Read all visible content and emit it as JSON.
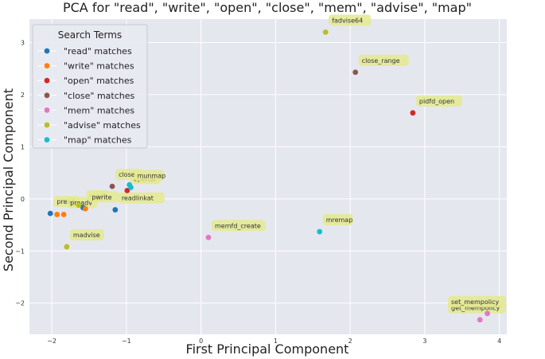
{
  "chart_data": {
    "type": "scatter",
    "title": "PCA for \"read\", \"write\", \"open\", \"close\", \"mem\", \"advise\", \"map\"",
    "xlabel": "First Principal Component",
    "ylabel": "Second Principal Component",
    "xlim": [
      -2.3,
      4.1
    ],
    "ylim": [
      -2.6,
      3.45
    ],
    "xticks": [
      -2,
      -1,
      0,
      1,
      2,
      3,
      4
    ],
    "yticks": [
      -2,
      -1,
      0,
      1,
      2,
      3
    ],
    "xtick_labels": [
      "−2",
      "−1",
      "0",
      "1",
      "2",
      "3",
      "4"
    ],
    "ytick_labels": [
      "−2",
      "−1",
      "0",
      "1",
      "2",
      "3"
    ],
    "grid": true,
    "background": "#e5e7ef",
    "legend": {
      "title": "Search Terms",
      "placement": "top-left",
      "entries": [
        {
          "label": "\"read\" matches",
          "color": "#1f77b4"
        },
        {
          "label": "\"write\" matches",
          "color": "#ff7f0e"
        },
        {
          "label": "\"open\" matches",
          "color": "#d62728"
        },
        {
          "label": "\"close\" matches",
          "color": "#8c564b"
        },
        {
          "label": "\"mem\" matches",
          "color": "#e377c2"
        },
        {
          "label": "\"advise\" matches",
          "color": "#bcbd22"
        },
        {
          "label": "\"map\" matches",
          "color": "#17becf"
        }
      ]
    },
    "series": [
      {
        "name": "\"read\" matches",
        "color": "#1f77b4",
        "points": [
          {
            "x": -2.02,
            "y": -0.28,
            "label": "pread"
          },
          {
            "x": -1.15,
            "y": -0.21,
            "label": "readlinkat"
          },
          {
            "x": -1.58,
            "y": -0.17,
            "label": "read"
          }
        ]
      },
      {
        "name": "\"write\" matches",
        "color": "#ff7f0e",
        "points": [
          {
            "x": -1.93,
            "y": -0.3,
            "label": ""
          },
          {
            "x": -1.84,
            "y": -0.3,
            "label": "preadv"
          },
          {
            "x": -1.55,
            "y": -0.19,
            "label": "pwrite"
          }
        ]
      },
      {
        "name": "\"open\" matches",
        "color": "#d62728",
        "points": [
          {
            "x": 2.84,
            "y": 1.65,
            "label": "pidfd_open"
          },
          {
            "x": -0.99,
            "y": 0.16,
            "label": "openat"
          }
        ]
      },
      {
        "name": "\"close\" matches",
        "color": "#8c564b",
        "points": [
          {
            "x": 2.07,
            "y": 2.43,
            "label": "close_range"
          },
          {
            "x": -1.19,
            "y": 0.24,
            "label": "close"
          }
        ]
      },
      {
        "name": "\"mem\" matches",
        "color": "#e377c2",
        "points": [
          {
            "x": 0.1,
            "y": -0.74,
            "label": "memfd_create"
          },
          {
            "x": 3.74,
            "y": -2.32,
            "label": "get_mempolicy"
          },
          {
            "x": 3.84,
            "y": -2.2,
            "label": "set_mempolicy"
          }
        ]
      },
      {
        "name": "\"advise\" matches",
        "color": "#bcbd22",
        "points": [
          {
            "x": 1.67,
            "y": 3.2,
            "label": "fadvise64"
          },
          {
            "x": -1.8,
            "y": -0.92,
            "label": "madvise"
          },
          {
            "x": -1.64,
            "y": -0.12,
            "label": ""
          }
        ]
      },
      {
        "name": "\"map\" matches",
        "color": "#17becf",
        "points": [
          {
            "x": 1.59,
            "y": -0.63,
            "label": "mremap"
          },
          {
            "x": -0.94,
            "y": 0.22,
            "label": "munmap"
          },
          {
            "x": -0.96,
            "y": 0.27,
            "label": ""
          }
        ]
      }
    ]
  }
}
